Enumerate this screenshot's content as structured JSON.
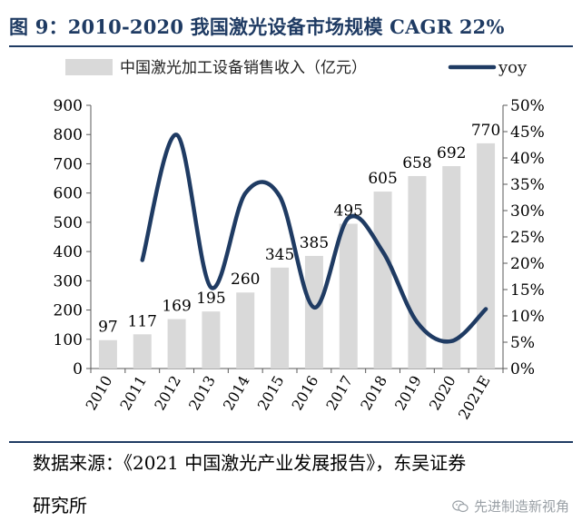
{
  "header": {
    "title": "图 9：2010-2020 我国激光设备市场规模 CAGR 22%"
  },
  "source": {
    "line1": "数据来源：《2021 中国激光产业发展报告》，东吴证券",
    "line2": "研究所"
  },
  "watermark": {
    "text": "先进制造新视角",
    "icon": "wechat-icon"
  },
  "chart_data": {
    "type": "bar",
    "categories": [
      "2010",
      "2011",
      "2012",
      "2013",
      "2014",
      "2015",
      "2016",
      "2017",
      "2018",
      "2019",
      "2020",
      "2021E"
    ],
    "series": [
      {
        "name": "中国激光加工设备销售收入（亿元）",
        "type": "bar",
        "axis": "left",
        "color": "#d9d9d9",
        "values": [
          97,
          117,
          169,
          195,
          260,
          345,
          385,
          495,
          605,
          658,
          692,
          770
        ],
        "data_labels": [
          "97",
          "117",
          "169",
          "195",
          "260",
          "345",
          "385",
          "495",
          "605",
          "658",
          "692",
          "770"
        ]
      },
      {
        "name": "yoy",
        "type": "line",
        "axis": "right",
        "color": "#1f3b63",
        "values": [
          null,
          0.206,
          0.444,
          0.154,
          0.333,
          0.327,
          0.116,
          0.286,
          0.222,
          0.088,
          0.052,
          0.113
        ]
      }
    ],
    "y_left": {
      "min": 0,
      "max": 900,
      "ticks": [
        0,
        100,
        200,
        300,
        400,
        500,
        600,
        700,
        800,
        900
      ]
    },
    "y_right": {
      "min": 0,
      "max": 0.5,
      "ticks": [
        "0%",
        "5%",
        "10%",
        "15%",
        "20%",
        "25%",
        "30%",
        "35%",
        "40%",
        "45%",
        "50%"
      ]
    },
    "legend": {
      "position": "top"
    },
    "grid": false
  }
}
